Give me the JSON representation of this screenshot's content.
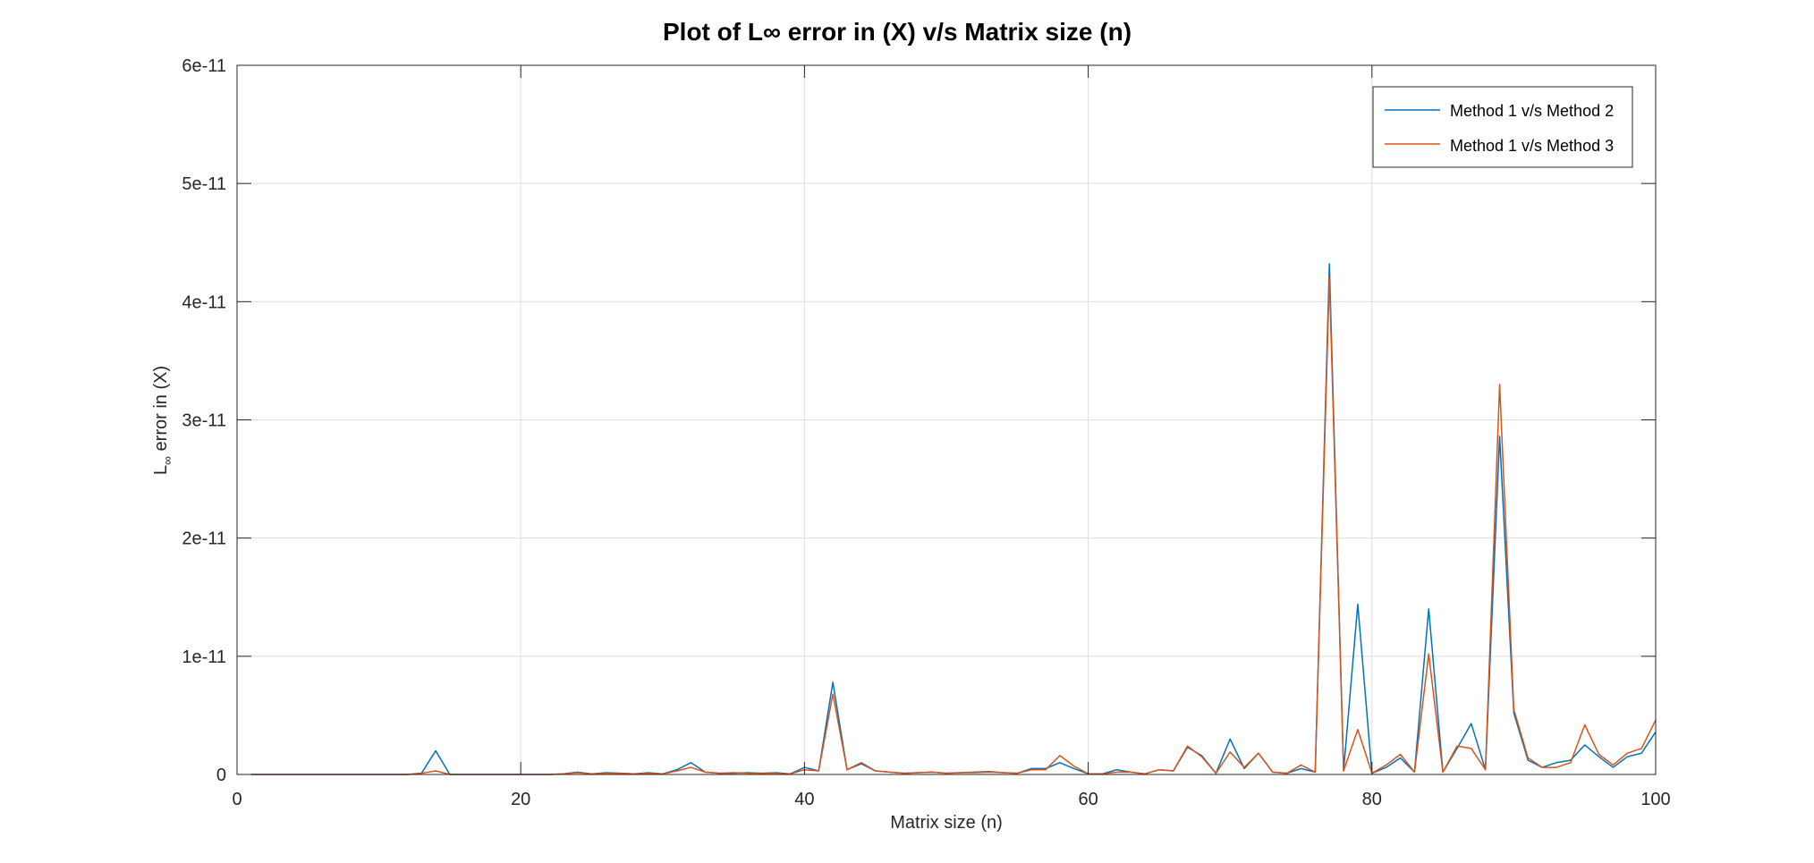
{
  "chart_data": {
    "type": "line",
    "title": "Plot of L∞ error in (X) v/s Matrix size (n)",
    "xlabel": "Matrix size (n)",
    "ylabel": "L∞ error in (X)",
    "ylabel_main": "L",
    "ylabel_sub": "∞",
    "ylabel_rest": " error in (X)",
    "xlim": [
      0,
      100
    ],
    "ylim": [
      0,
      6e-11
    ],
    "xticks": [
      0,
      20,
      40,
      60,
      80,
      100
    ],
    "xtick_labels": [
      "0",
      "20",
      "40",
      "60",
      "80",
      "100"
    ],
    "yticks": [
      0,
      1e-11,
      2e-11,
      3e-11,
      4e-11,
      5e-11,
      6e-11
    ],
    "ytick_labels": [
      "0",
      "1e-11",
      "2e-11",
      "3e-11",
      "4e-11",
      "5e-11",
      "6e-11"
    ],
    "grid": true,
    "legend_position": "top-right",
    "x": [
      1,
      2,
      3,
      4,
      5,
      6,
      7,
      8,
      9,
      10,
      11,
      12,
      13,
      14,
      15,
      16,
      17,
      18,
      19,
      20,
      21,
      22,
      23,
      24,
      25,
      26,
      27,
      28,
      29,
      30,
      31,
      32,
      33,
      34,
      35,
      36,
      37,
      38,
      39,
      40,
      41,
      42,
      43,
      44,
      45,
      46,
      47,
      48,
      49,
      50,
      51,
      52,
      53,
      54,
      55,
      56,
      57,
      58,
      59,
      60,
      61,
      62,
      63,
      64,
      65,
      66,
      67,
      68,
      69,
      70,
      71,
      72,
      73,
      74,
      75,
      76,
      77,
      78,
      79,
      80,
      81,
      82,
      83,
      84,
      85,
      86,
      87,
      88,
      89,
      90,
      91,
      92,
      93,
      94,
      95,
      96,
      97,
      98,
      99,
      100
    ],
    "series": [
      {
        "name": "Method 1 v/s Method 2",
        "color": "#0072BD",
        "values": [
          0,
          0,
          0,
          0,
          0,
          0,
          0,
          0,
          0,
          0,
          0,
          0,
          1e-13,
          2e-12,
          0,
          0,
          0,
          0,
          0,
          0,
          0,
          0,
          5e-14,
          2e-13,
          5e-14,
          1.5e-13,
          1e-13,
          5e-14,
          1.5e-13,
          5e-14,
          4e-13,
          1e-12,
          2e-13,
          1e-13,
          1e-13,
          1.5e-13,
          1e-13,
          1.5e-13,
          5e-14,
          6e-13,
          3e-13,
          7.8e-12,
          4e-13,
          9e-13,
          3e-13,
          2e-13,
          1e-13,
          1.5e-13,
          2e-13,
          1e-13,
          1.5e-13,
          2e-13,
          2.5e-13,
          1.5e-13,
          1e-13,
          5e-13,
          5e-13,
          1e-12,
          5e-13,
          5e-14,
          5e-14,
          4e-13,
          2e-13,
          5e-14,
          4e-13,
          3e-13,
          2.3e-12,
          1.6e-12,
          1e-13,
          3e-12,
          5e-13,
          1.8e-12,
          2e-13,
          1e-13,
          5e-13,
          2e-13,
          4.32e-11,
          3e-13,
          1.44e-11,
          1e-13,
          6e-13,
          1.4e-12,
          2e-13,
          1.4e-11,
          2e-13,
          2.2e-12,
          4.3e-12,
          4e-13,
          2.86e-11,
          5.2e-12,
          1.2e-12,
          6e-13,
          1e-12,
          1.2e-12,
          2.5e-12,
          1.5e-12,
          6e-13,
          1.5e-12,
          1.8e-12,
          3.6e-12
        ]
      },
      {
        "name": "Method 1 v/s Method 3",
        "color": "#D95319",
        "values": [
          0,
          0,
          0,
          0,
          0,
          0,
          0,
          0,
          0,
          0,
          0,
          0,
          1e-13,
          3e-13,
          0,
          0,
          0,
          0,
          0,
          0,
          0,
          0,
          5e-14,
          1.5e-13,
          5e-14,
          1e-13,
          1e-13,
          5e-14,
          1e-13,
          5e-14,
          3e-13,
          6e-13,
          2e-13,
          1e-13,
          1.5e-13,
          1e-13,
          1e-13,
          1e-13,
          5e-14,
          4e-13,
          3e-13,
          6.8e-12,
          4e-13,
          1e-12,
          3e-13,
          2e-13,
          1e-13,
          1.5e-13,
          2e-13,
          1e-13,
          1.5e-13,
          1.5e-13,
          2e-13,
          1.5e-13,
          1e-13,
          4e-13,
          4e-13,
          1.6e-12,
          7e-13,
          5e-14,
          5e-14,
          2e-13,
          2e-13,
          5e-14,
          4e-13,
          3e-13,
          2.4e-12,
          1.5e-12,
          1e-13,
          1.9e-12,
          6e-13,
          1.8e-12,
          2e-13,
          1e-13,
          8e-13,
          2e-13,
          4.2e-11,
          3e-13,
          3.8e-12,
          1e-13,
          8e-13,
          1.7e-12,
          2e-13,
          1.02e-11,
          2e-13,
          2.4e-12,
          2.2e-12,
          4e-13,
          3.3e-11,
          5.5e-12,
          1.4e-12,
          6e-13,
          6e-13,
          1e-12,
          4.2e-12,
          1.7e-12,
          8e-13,
          1.8e-12,
          2.2e-12,
          4.6e-12
        ]
      }
    ]
  }
}
